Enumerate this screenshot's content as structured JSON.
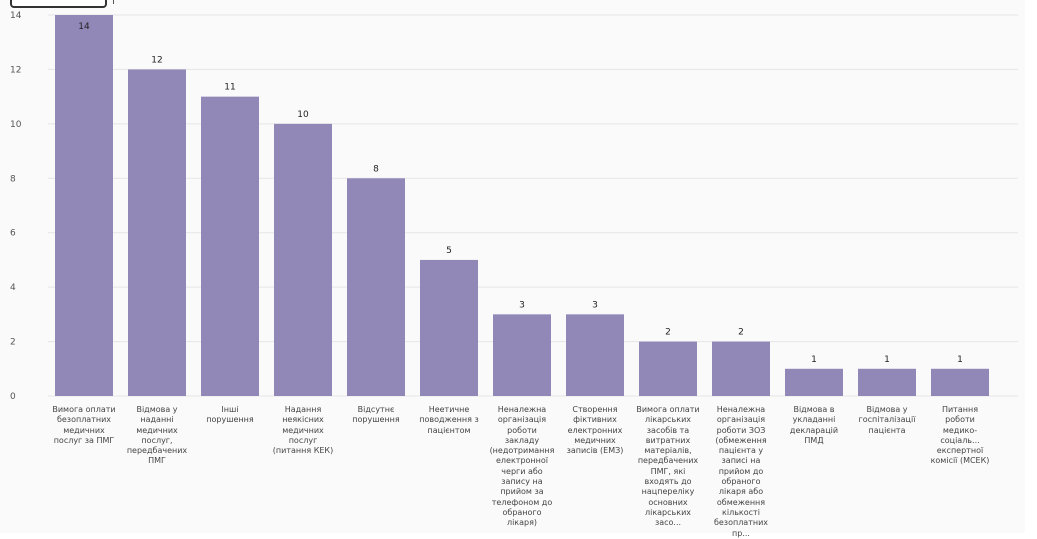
{
  "chart_data": {
    "type": "bar",
    "categories": [
      "Вимога оплати безоплатних медичних послуг за ПМГ",
      "Відмова у наданні медичних послуг, передбачених ПМГ",
      "Інші порушення",
      "Надання неякісних медичних послуг (питання КЕК)",
      "Відсутнє порушення",
      "Неетичне поводження з пацієнтом",
      "Неналежна організація роботи закладу (недотримання електронної черги або запису на прийом за телефоном до обраного лікаря)",
      "Створення фіктивних електронних медичних записів (ЕМЗ)",
      "Вимога оплати лікарських засобів та витратних матеріалів, передбачених ПМГ, які входять до нацпереліку основних лікарських засо...",
      "Неналежна організація роботи ЗОЗ (обмеження пацієнта у записі на прийом до обраного лікаря або обмеження кількості безоплатних пр...",
      "Відмова в укладанні декларацій ПМД",
      "Відмова у госпіталізації пацієнта",
      "Питання роботи медико-соціаль... експертної комісії (МСЕК)"
    ],
    "values": [
      14,
      12,
      11,
      10,
      8,
      5,
      3,
      3,
      2,
      2,
      1,
      1,
      1
    ],
    "data_labels": [
      "14",
      "12",
      "11",
      "10",
      "8",
      "5",
      "3",
      "3",
      "2",
      "2",
      "1",
      "1",
      "1"
    ],
    "yticks": [
      "0",
      "2",
      "4",
      "6",
      "8",
      "10",
      "12",
      "14"
    ],
    "ylim": [
      0,
      14
    ],
    "grid": true,
    "bar_color": "#9188b8"
  }
}
